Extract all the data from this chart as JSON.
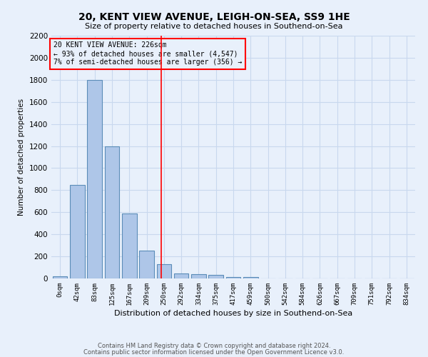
{
  "title1": "20, KENT VIEW AVENUE, LEIGH-ON-SEA, SS9 1HE",
  "title2": "Size of property relative to detached houses in Southend-on-Sea",
  "xlabel": "Distribution of detached houses by size in Southend-on-Sea",
  "ylabel": "Number of detached properties",
  "bar_labels": [
    "0sqm",
    "42sqm",
    "83sqm",
    "125sqm",
    "167sqm",
    "209sqm",
    "250sqm",
    "292sqm",
    "334sqm",
    "375sqm",
    "417sqm",
    "459sqm",
    "500sqm",
    "542sqm",
    "584sqm",
    "626sqm",
    "667sqm",
    "709sqm",
    "751sqm",
    "792sqm",
    "834sqm"
  ],
  "bar_values": [
    20,
    845,
    1800,
    1200,
    590,
    255,
    130,
    45,
    40,
    30,
    15,
    10,
    0,
    0,
    0,
    0,
    0,
    0,
    0,
    0,
    0
  ],
  "bar_color": "#aec6e8",
  "bar_edgecolor": "#5b8db8",
  "grid_color": "#c8d8ee",
  "background_color": "#e8f0fb",
  "annotation_text": "20 KENT VIEW AVENUE: 226sqm\n← 93% of detached houses are smaller (4,547)\n7% of semi-detached houses are larger (356) →",
  "red_line_x": 5.85,
  "ylim": [
    0,
    2200
  ],
  "yticks": [
    0,
    200,
    400,
    600,
    800,
    1000,
    1200,
    1400,
    1600,
    1800,
    2000,
    2200
  ],
  "footer1": "Contains HM Land Registry data © Crown copyright and database right 2024.",
  "footer2": "Contains public sector information licensed under the Open Government Licence v3.0."
}
